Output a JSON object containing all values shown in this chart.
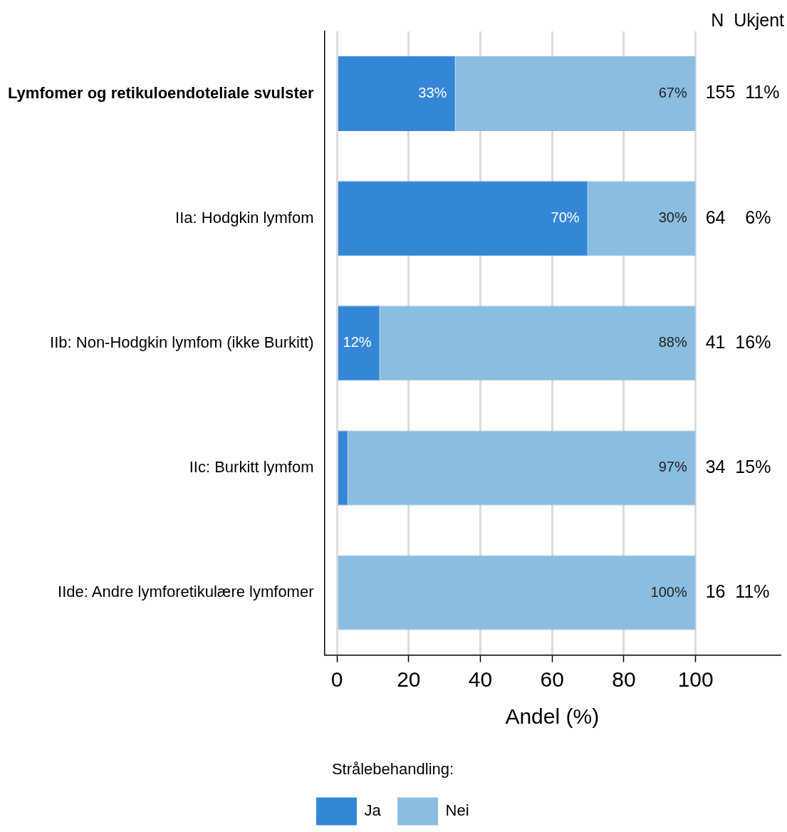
{
  "chart_data": {
    "type": "bar",
    "orientation": "horizontal",
    "stacked": true,
    "categories": [
      "Lymfomer og retikuloendoteliale svulster",
      "IIa: Hodgkin lymfom",
      "IIb: Non-Hodgkin lymfom (ikke Burkitt)",
      "IIc: Burkitt lymfom",
      "IIde: Andre lymforetikulære lymfomer"
    ],
    "series": [
      {
        "name": "Ja",
        "color": "#3486d6",
        "values": [
          33,
          70,
          12,
          3,
          0
        ],
        "value_labels": [
          "33%",
          "70%",
          "12%",
          null,
          null
        ]
      },
      {
        "name": "Nei",
        "color": "#8abddf",
        "values": [
          67,
          30,
          88,
          97,
          100
        ],
        "value_labels": [
          "67%",
          "30%",
          "88%",
          "97%",
          "100%"
        ]
      }
    ],
    "xlim": [
      -3.5,
      123.5
    ],
    "xticks": [
      0,
      20,
      40,
      60,
      80,
      100
    ],
    "xlabel": "Andel (%)",
    "grid": "x",
    "legend": "bottom",
    "legend_title": "Strålebehandling:",
    "annotations": [
      "N  Ukjent",
      "155  11%",
      "64    6%",
      "41  16%",
      "34  15%",
      "16  11%"
    ]
  }
}
